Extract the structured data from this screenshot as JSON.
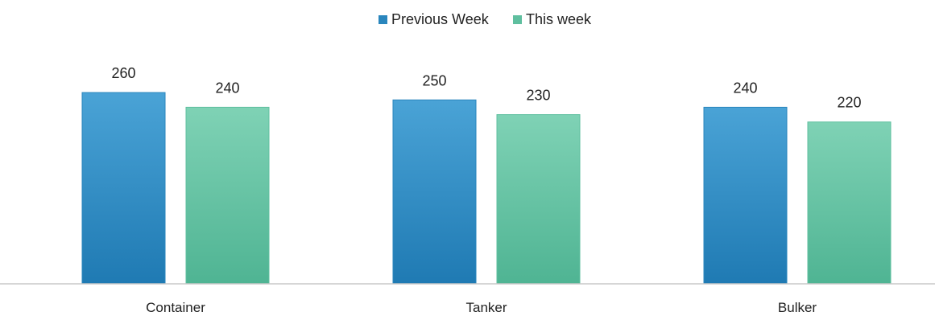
{
  "chart_data": {
    "type": "bar",
    "categories": [
      "Container",
      "Tanker",
      "Bulker"
    ],
    "series": [
      {
        "name": "Previous Week",
        "values": [
          260,
          250,
          240
        ],
        "color": "#2a86bd"
      },
      {
        "name": "This week",
        "values": [
          240,
          230,
          220
        ],
        "color": "#5fbf9f"
      }
    ],
    "ylim": [
      0,
      300
    ],
    "legend_position": "top-center",
    "grid": false,
    "data_labels": true
  },
  "colors": {
    "axis_line": "#c8c8c8",
    "label_text": "#222222"
  }
}
